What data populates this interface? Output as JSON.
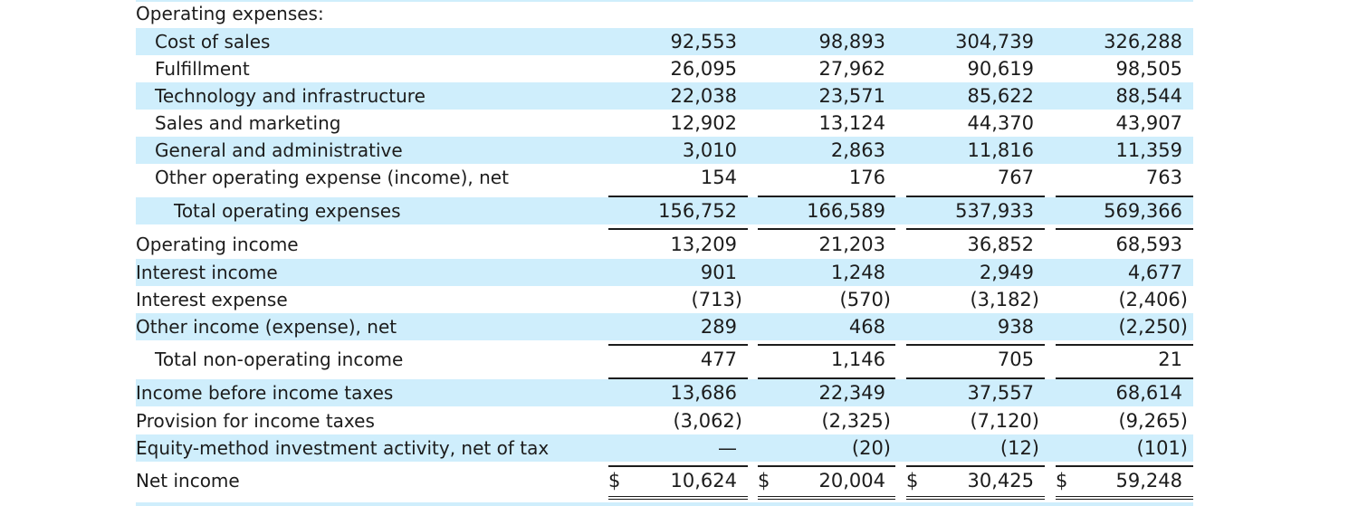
{
  "section_header": "Operating expenses:",
  "rows": [
    {
      "label": "Cost of sales",
      "values": [
        "92,553",
        "98,893",
        "304,739",
        "326,288"
      ]
    },
    {
      "label": "Fulfillment",
      "values": [
        "26,095",
        "27,962",
        "90,619",
        "98,505"
      ]
    },
    {
      "label": "Technology and infrastructure",
      "values": [
        "22,038",
        "23,571",
        "85,622",
        "88,544"
      ]
    },
    {
      "label": "Sales and marketing",
      "values": [
        "12,902",
        "13,124",
        "44,370",
        "43,907"
      ]
    },
    {
      "label": "General and administrative",
      "values": [
        "3,010",
        "2,863",
        "11,816",
        "11,359"
      ]
    },
    {
      "label": "Other operating expense (income), net",
      "values": [
        "154",
        "176",
        "767",
        "763"
      ]
    },
    {
      "label": "Total operating expenses",
      "values": [
        "156,752",
        "166,589",
        "537,933",
        "569,366"
      ]
    },
    {
      "label": "Operating income",
      "values": [
        "13,209",
        "21,203",
        "36,852",
        "68,593"
      ]
    },
    {
      "label": "Interest income",
      "values": [
        "901",
        "1,248",
        "2,949",
        "4,677"
      ]
    },
    {
      "label": "Interest expense",
      "values": [
        "(713)",
        "(570)",
        "(3,182)",
        "(2,406)"
      ]
    },
    {
      "label": "Other income (expense), net",
      "values": [
        "289",
        "468",
        "938",
        "(2,250)"
      ]
    },
    {
      "label": "Total non-operating income",
      "values": [
        "477",
        "1,146",
        "705",
        "21"
      ]
    },
    {
      "label": "Income before income taxes",
      "values": [
        "13,686",
        "22,349",
        "37,557",
        "68,614"
      ]
    },
    {
      "label": "Provision for income taxes",
      "values": [
        "(3,062)",
        "(2,325)",
        "(7,120)",
        "(9,265)"
      ]
    },
    {
      "label": "Equity-method investment activity, net of tax",
      "values": [
        "—",
        "(20)",
        "(12)",
        "(101)"
      ]
    },
    {
      "label": "Net income",
      "values": [
        "10,624",
        "20,004",
        "30,425",
        "59,248"
      ]
    }
  ],
  "currency_symbol": "$",
  "colors": {
    "row_highlight": "#cfeefc",
    "text": "#1c1c1c"
  }
}
